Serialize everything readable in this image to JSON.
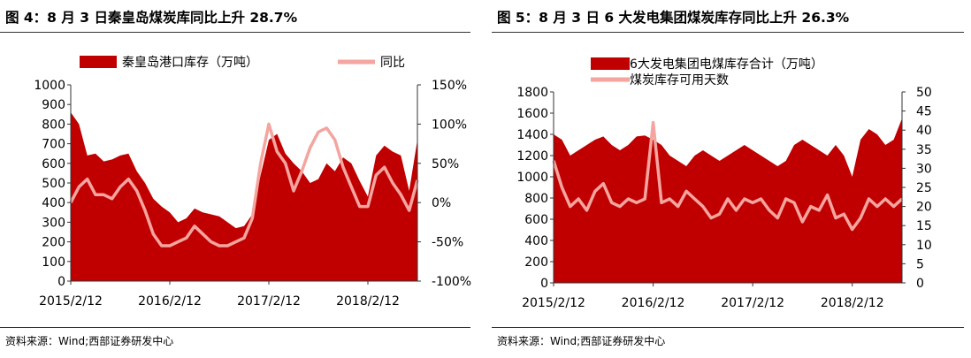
{
  "colors": {
    "area": "#c00000",
    "line": "#f4a5a0",
    "axis": "#333333"
  },
  "charts": [
    {
      "title": "图 4：8 月 3 日秦皇岛煤炭库同比上升 28.7%",
      "source": "资料来源：Wind;西部证券研发中心",
      "chart_data": {
        "type": "area",
        "x": [
          "2015/2/12",
          "2015/3/12",
          "2015/4/12",
          "2015/5/12",
          "2015/6/12",
          "2015/7/12",
          "2015/8/12",
          "2015/9/12",
          "2015/10/12",
          "2015/11/12",
          "2015/12/12",
          "2016/1/12",
          "2016/2/12",
          "2016/3/12",
          "2016/4/12",
          "2016/5/12",
          "2016/6/12",
          "2016/7/12",
          "2016/8/12",
          "2016/9/12",
          "2016/10/12",
          "2016/11/12",
          "2016/12/12",
          "2017/1/12",
          "2017/2/12",
          "2017/3/12",
          "2017/4/12",
          "2017/5/12",
          "2017/6/12",
          "2017/7/12",
          "2017/8/12",
          "2017/9/12",
          "2017/10/12",
          "2017/11/12",
          "2017/12/12",
          "2018/1/12",
          "2018/2/12",
          "2018/3/12",
          "2018/4/12",
          "2018/5/12",
          "2018/6/12",
          "2018/7/12",
          "2018/8/3"
        ],
        "x_ticks": [
          "2015/2/12",
          "2016/2/12",
          "2017/2/12",
          "2018/2/12"
        ],
        "series": [
          {
            "name": "秦皇岛港口库存（万吨）",
            "axis": "left",
            "values": [
              860,
              800,
              640,
              650,
              610,
              620,
              640,
              650,
              560,
              500,
              420,
              380,
              350,
              300,
              320,
              370,
              350,
              340,
              330,
              300,
              270,
              280,
              340,
              540,
              720,
              750,
              650,
              600,
              560,
              500,
              520,
              600,
              560,
              630,
              600,
              510,
              430,
              640,
              690,
              660,
              640,
              460,
              720
            ]
          },
          {
            "name": "同比",
            "axis": "right",
            "values": [
              0,
              20,
              30,
              10,
              10,
              5,
              20,
              30,
              15,
              -10,
              -40,
              -55,
              -55,
              -50,
              -45,
              -30,
              -40,
              -50,
              -55,
              -55,
              -50,
              -45,
              -20,
              50,
              100,
              65,
              50,
              15,
              40,
              70,
              90,
              95,
              80,
              45,
              20,
              -5,
              -5,
              35,
              45,
              25,
              10,
              -10,
              28.7
            ]
          }
        ],
        "y_left": {
          "min": 0,
          "max": 1000,
          "ticks": [
            0,
            100,
            200,
            300,
            400,
            500,
            600,
            700,
            800,
            900,
            1000
          ]
        },
        "y_right": {
          "min": -100,
          "max": 150,
          "ticks": [
            "-100%",
            "-50%",
            "0%",
            "50%",
            "100%",
            "150%"
          ]
        },
        "legend_position": "top"
      }
    },
    {
      "title": "图 5：8 月 3 日 6 大发电集团煤炭库存同比上升 26.3%",
      "source": "资料来源：Wind;西部证券研发中心",
      "chart_data": {
        "type": "area",
        "x": [
          "2015/2/12",
          "2015/3/12",
          "2015/4/12",
          "2015/5/12",
          "2015/6/12",
          "2015/7/12",
          "2015/8/12",
          "2015/9/12",
          "2015/10/12",
          "2015/11/12",
          "2015/12/12",
          "2016/1/12",
          "2016/2/12",
          "2016/3/12",
          "2016/4/12",
          "2016/5/12",
          "2016/6/12",
          "2016/7/12",
          "2016/8/12",
          "2016/9/12",
          "2016/10/12",
          "2016/11/12",
          "2016/12/12",
          "2017/1/12",
          "2017/2/12",
          "2017/3/12",
          "2017/4/12",
          "2017/5/12",
          "2017/6/12",
          "2017/7/12",
          "2017/8/12",
          "2017/9/12",
          "2017/10/12",
          "2017/11/12",
          "2017/12/12",
          "2018/1/12",
          "2018/2/12",
          "2018/3/12",
          "2018/4/12",
          "2018/5/12",
          "2018/6/12",
          "2018/7/12",
          "2018/8/3"
        ],
        "x_ticks": [
          "2015/2/12",
          "2016/2/12",
          "2017/2/12",
          "2018/2/12"
        ],
        "series": [
          {
            "name": "6大发电集团电煤库存合计（万吨）",
            "axis": "left",
            "values": [
              1400,
              1350,
              1200,
              1250,
              1300,
              1350,
              1380,
              1300,
              1250,
              1300,
              1380,
              1390,
              1350,
              1300,
              1200,
              1150,
              1100,
              1200,
              1250,
              1200,
              1150,
              1200,
              1250,
              1300,
              1250,
              1200,
              1150,
              1100,
              1150,
              1300,
              1350,
              1300,
              1250,
              1200,
              1300,
              1200,
              1000,
              1350,
              1450,
              1400,
              1300,
              1350,
              1550
            ]
          },
          {
            "name": "煤炭库存可用天数",
            "axis": "right",
            "values": [
              32,
              25,
              20,
              22,
              19,
              24,
              26,
              21,
              20,
              22,
              21,
              22,
              42,
              21,
              22,
              20,
              24,
              22,
              20,
              17,
              18,
              22,
              19,
              22,
              21,
              22,
              19,
              17,
              22,
              21,
              16,
              20,
              19,
              23,
              17,
              18,
              14,
              17,
              22,
              20,
              22,
              20,
              22
            ]
          }
        ],
        "y_left": {
          "min": 0,
          "max": 1800,
          "ticks": [
            0,
            200,
            400,
            600,
            800,
            1000,
            1200,
            1400,
            1600,
            1800
          ]
        },
        "y_right": {
          "min": 0,
          "max": 50,
          "ticks": [
            0,
            5,
            10,
            15,
            20,
            25,
            30,
            35,
            40,
            45,
            50
          ]
        },
        "legend_position": "top-left"
      }
    }
  ]
}
